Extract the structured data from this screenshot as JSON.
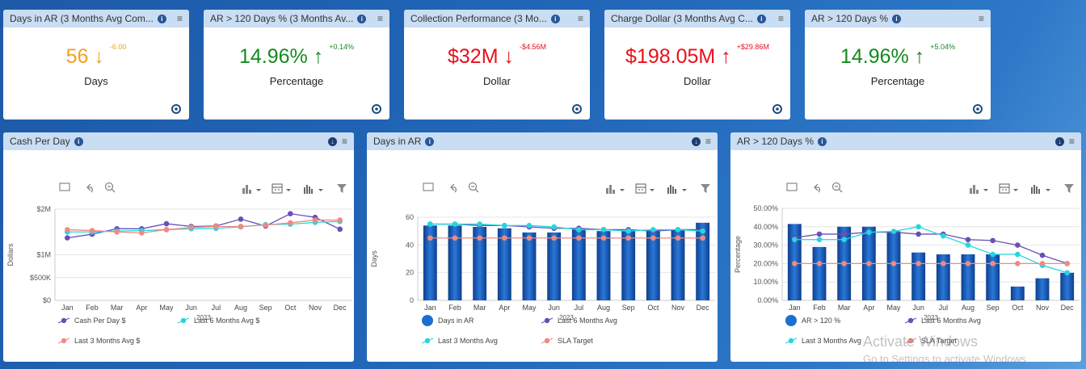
{
  "kpis": [
    {
      "title": "Days in AR (3 Months Avg Com...",
      "value": "56",
      "arrow": "↓",
      "delta": "-6.00",
      "unit": "Days",
      "color": "#f5a01e"
    },
    {
      "title": "AR > 120 Days % (3 Months Av...",
      "value": "14.96%",
      "arrow": "↑",
      "delta": "+0.14%",
      "unit": "Percentage",
      "color": "#138a1f"
    },
    {
      "title": "Collection Performance (3 Mo...",
      "value": "$32M",
      "arrow": "↓",
      "delta": "-$4.56M",
      "unit": "Dollar",
      "color": "#e8101a"
    },
    {
      "title": "Charge Dollar (3 Months Avg C...",
      "value": "$198.05M",
      "arrow": "↑",
      "delta": "+$29.86M",
      "unit": "Dollar",
      "color": "#e8101a"
    },
    {
      "title": "AR > 120 Days %",
      "value": "14.96%",
      "arrow": "↑",
      "delta": "+5.04%",
      "unit": "Percentage",
      "color": "#138a1f"
    }
  ],
  "charts": [
    {
      "title": "Cash Per Day",
      "ylabel": "Dollars"
    },
    {
      "title": "Days in AR",
      "ylabel": "Days"
    },
    {
      "title": "AR > 120 Days %",
      "ylabel": "Percentage"
    }
  ],
  "watermark": {
    "line1": "Activate Windows",
    "line2": "Go to Settings to activate Windows"
  },
  "colors": {
    "purple": "#6a4fb8",
    "cyan": "#22d7e0",
    "salmon": "#f08a80",
    "bar": "#1a5bb8"
  },
  "chart_data": [
    {
      "type": "line",
      "title": "Cash Per Day",
      "xlabel": "2023",
      "ylabel": "Dollars",
      "categories": [
        "Jan",
        "Feb",
        "Mar",
        "Apr",
        "May",
        "Jun",
        "Jul",
        "Aug",
        "Sep",
        "Oct",
        "Nov",
        "Dec"
      ],
      "yticks": [
        "$0",
        "$500K",
        "$1M",
        "$2M"
      ],
      "series": [
        {
          "name": "Cash Per Day $",
          "values": [
            1.37,
            1.45,
            1.57,
            1.57,
            1.68,
            1.62,
            1.63,
            1.78,
            1.63,
            1.9,
            1.82,
            1.56
          ]
        },
        {
          "name": "Last 6 Months Avg $",
          "values": [
            1.5,
            1.5,
            1.52,
            1.53,
            1.55,
            1.57,
            1.58,
            1.61,
            1.66,
            1.67,
            1.71,
            1.73
          ]
        },
        {
          "name": "Last 3 Months Avg $",
          "values": [
            1.55,
            1.53,
            1.5,
            1.48,
            1.55,
            1.6,
            1.62,
            1.62,
            1.65,
            1.7,
            1.76,
            1.76
          ]
        }
      ],
      "legend": "bottom"
    },
    {
      "type": "bar",
      "title": "Days in AR",
      "xlabel": "2023",
      "ylabel": "Days",
      "categories": [
        "Jan",
        "Feb",
        "Mar",
        "Apr",
        "May",
        "Jun",
        "Jul",
        "Aug",
        "Sep",
        "Oct",
        "Nov",
        "Dec"
      ],
      "ylim": [
        0,
        60
      ],
      "yticks": [
        0,
        20,
        40,
        60
      ],
      "bars": {
        "name": "Days in AR",
        "values": [
          54,
          54,
          53,
          52,
          49,
          49,
          52,
          50,
          50,
          50,
          51,
          56
        ]
      },
      "series": [
        {
          "name": "Last 6 Months Avg",
          "values": [
            55,
            55,
            54,
            54,
            53,
            52,
            52,
            51,
            51,
            50,
            51,
            51
          ]
        },
        {
          "name": "Last 3 Months Avg",
          "values": [
            55,
            55,
            55,
            54,
            54,
            53,
            51,
            51,
            50,
            51,
            51,
            50
          ]
        },
        {
          "name": "SLA Target",
          "values": [
            45,
            45,
            45,
            45,
            45,
            45,
            45,
            45,
            45,
            45,
            45,
            45
          ]
        }
      ],
      "legend": "bottom"
    },
    {
      "type": "bar",
      "title": "AR > 120 Days %",
      "xlabel": "2023",
      "ylabel": "Percentage",
      "categories": [
        "Jan",
        "Feb",
        "Mar",
        "Apr",
        "May",
        "Jun",
        "Jul",
        "Aug",
        "Sep",
        "Oct",
        "Nov",
        "Dec"
      ],
      "ylim": [
        0,
        50
      ],
      "yticks": [
        "0.00%",
        "10.00%",
        "20.00%",
        "30.00%",
        "40.00%",
        "50.00%"
      ],
      "bars": {
        "name": "AR > 120 %",
        "values": [
          41.5,
          29,
          40,
          40,
          37.5,
          26,
          25,
          25,
          25,
          7.5,
          12,
          15
        ]
      },
      "series": [
        {
          "name": "Last 6 Months Avg",
          "values": [
            34,
            36,
            36,
            37,
            37,
            36,
            36,
            33,
            32.5,
            30,
            24.5,
            20
          ]
        },
        {
          "name": "Last 3 Months Avg",
          "values": [
            33,
            33,
            33,
            37,
            37.5,
            40,
            35,
            30,
            25,
            25,
            19,
            15
          ]
        },
        {
          "name": "SLA Target",
          "values": [
            20,
            20,
            20,
            20,
            20,
            20,
            20,
            20,
            20,
            20,
            20,
            20
          ]
        }
      ],
      "legend": "bottom"
    }
  ]
}
